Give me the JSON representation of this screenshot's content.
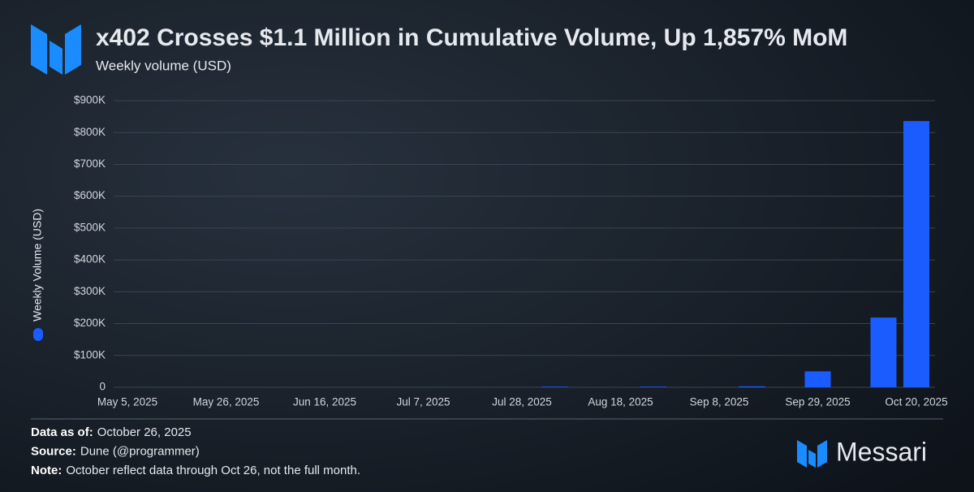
{
  "chart_data": {
    "type": "bar",
    "title": "x402 Crosses $1.1 Million in Cumulative Volume, Up 1,857% MoM",
    "subtitle": "Weekly volume (USD)",
    "categories": [
      "May 5, 2025",
      null,
      null,
      "May 26, 2025",
      null,
      null,
      "Jun 16, 2025",
      null,
      null,
      "Jul 7, 2025",
      null,
      null,
      "Jul 28, 2025",
      null,
      null,
      "Aug 18, 2025",
      null,
      null,
      "Sep 8, 2025",
      null,
      null,
      "Sep 29, 2025",
      null,
      null,
      "Oct 20, 2025"
    ],
    "series": [
      {
        "name": "Weekly Volume (USD)",
        "color": "#1a5cff",
        "values": [
          0,
          0,
          0,
          0,
          0,
          0,
          0,
          0,
          0,
          0,
          0,
          0,
          0,
          2000,
          0,
          0,
          2000,
          0,
          0,
          3000,
          0,
          50000,
          0,
          219000,
          836000
        ]
      }
    ],
    "ylim": [
      0,
      900000
    ],
    "yticks": [
      0,
      {
        "value": 100000,
        "label": "$100K"
      },
      {
        "value": 200000,
        "label": "$200K"
      },
      {
        "value": 300000,
        "label": "$300K"
      },
      {
        "value": 400000,
        "label": "$400K"
      },
      {
        "value": 500000,
        "label": "$500K"
      },
      {
        "value": 600000,
        "label": "$600K"
      },
      {
        "value": 700000,
        "label": "$700K"
      },
      {
        "value": 800000,
        "label": "$800K"
      },
      {
        "value": 900000,
        "label": "$900K"
      }
    ],
    "grid": true,
    "legend": "left"
  },
  "footer": {
    "notes": [
      {
        "label": "Data as of:",
        "text": "October 26, 2025"
      },
      {
        "label": "Source:",
        "text": "Dune (@programmer)"
      },
      {
        "label": "Note:",
        "text": "October reflect data through Oct 26, not the full month."
      }
    ],
    "brand": "Messari"
  }
}
